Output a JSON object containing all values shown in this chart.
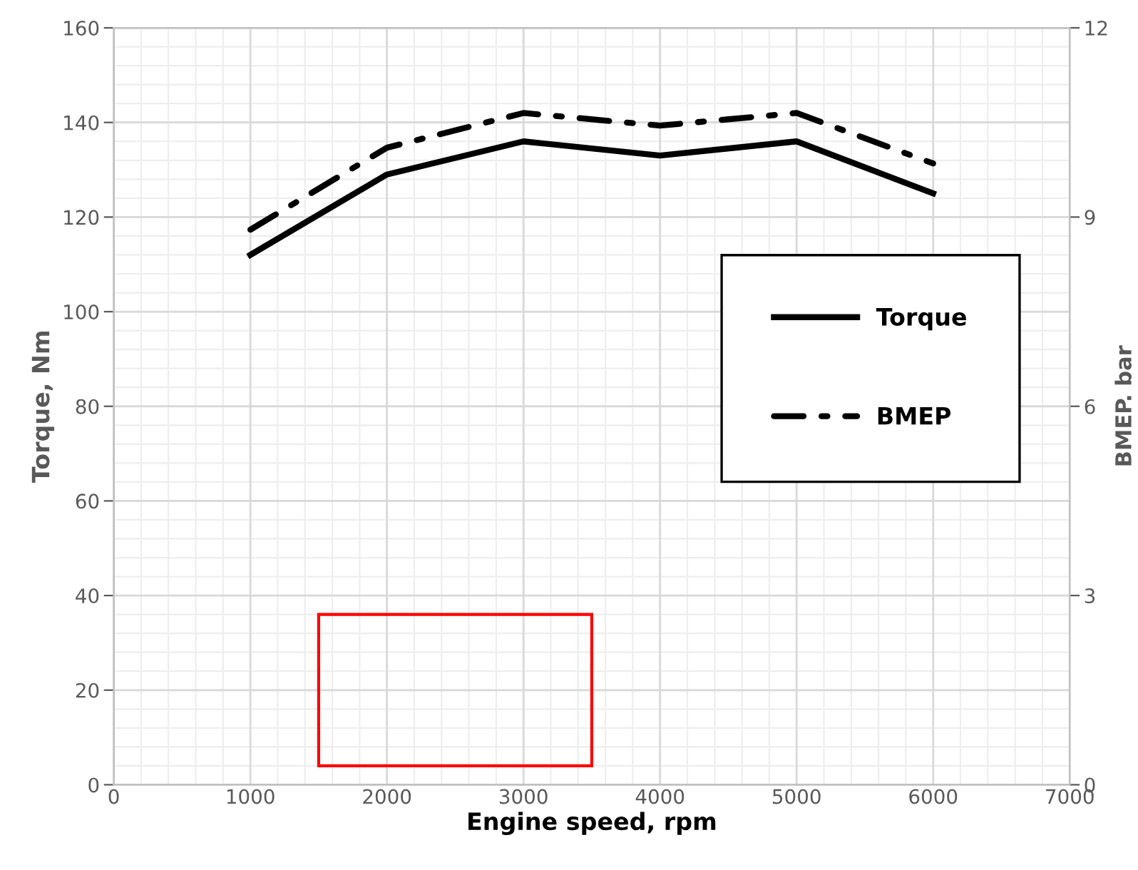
{
  "chart_data": {
    "type": "line",
    "xlabel": "Engine speed, rpm",
    "ylabel": "Torque, Nm",
    "y2label": "BMEP. bar",
    "x": [
      1000,
      2000,
      3000,
      4000,
      5000,
      6000
    ],
    "series": [
      {
        "name": "Torque",
        "color": "#000000",
        "values": [
          112,
          129,
          136,
          133,
          136,
          125
        ],
        "line_style": "solid"
      },
      {
        "name": "BMEP",
        "color": "#000000",
        "values": [
          8.8,
          10.1,
          10.65,
          10.45,
          10.65,
          9.85
        ],
        "axis": "y2",
        "line_style": "dashdot"
      }
    ],
    "xlim": [
      0,
      7000
    ],
    "xticks": [
      0,
      1000,
      2000,
      3000,
      4000,
      5000,
      6000,
      7000
    ],
    "ylim": [
      0,
      160
    ],
    "yticks": [
      0,
      20,
      40,
      60,
      80,
      100,
      120,
      140,
      160
    ],
    "y2lim": [
      0,
      12
    ],
    "y2ticks": [
      0,
      3,
      6,
      9,
      12
    ],
    "grid": true,
    "legend": "right",
    "marker": "none"
  }
}
